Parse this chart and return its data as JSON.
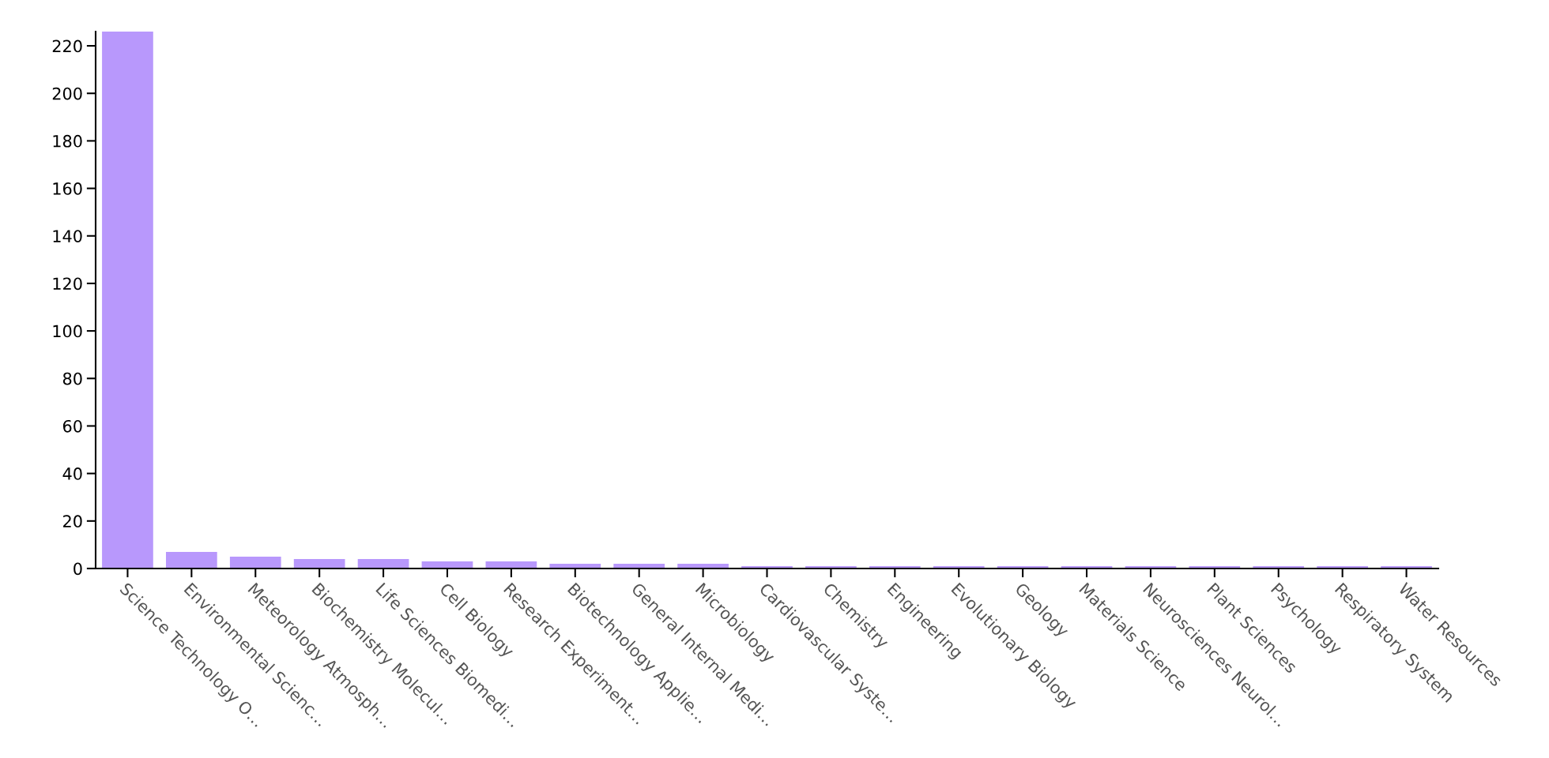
{
  "chart_data": {
    "type": "bar",
    "categories": [
      "Science Technology O…",
      "Environmental Scienc…",
      "Meteorology Atmosph…",
      "Biochemistry Molecul…",
      "Life Sciences Biomedi…",
      "Cell Biology",
      "Research Experiment…",
      "Biotechnology Applie…",
      "General Internal Medi…",
      "Microbiology",
      "Cardiovascular Syste…",
      "Chemistry",
      "Engineering",
      "Evolutionary Biology",
      "Geology",
      "Materials Science",
      "Neurosciences Neurol…",
      "Plant Sciences",
      "Psychology",
      "Respiratory System",
      "Water Resources"
    ],
    "values": [
      226,
      7,
      5,
      4,
      4,
      3,
      3,
      2,
      2,
      2,
      1,
      1,
      1,
      1,
      1,
      1,
      1,
      1,
      1,
      1,
      1
    ],
    "color": "#b898fc",
    "ylim": [
      0,
      226
    ],
    "yticks": [
      0,
      20,
      40,
      60,
      80,
      100,
      120,
      140,
      160,
      180,
      200,
      220
    ],
    "grid": false,
    "legend": false
  }
}
